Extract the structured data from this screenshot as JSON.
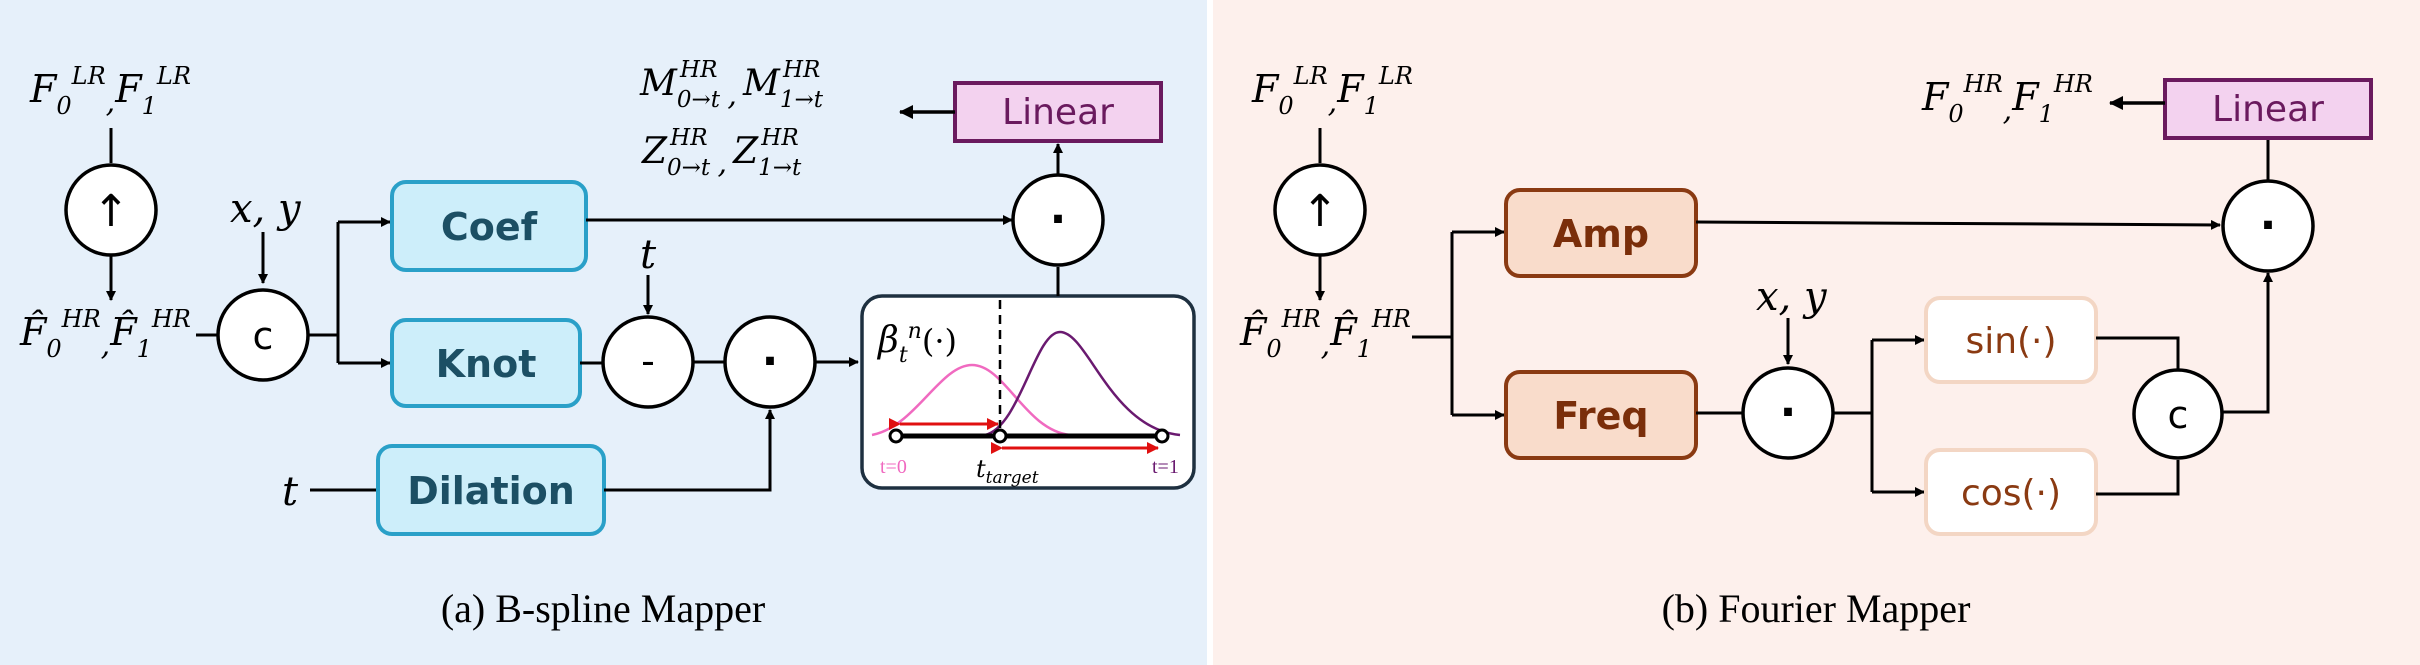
{
  "colors": {
    "panel_a_bg": "#e6f0fa",
    "panel_b_bg": "#fdf0ec",
    "blue_box_fill": "#cdeefa",
    "blue_box_stroke": "#2aa0c8",
    "blue_box_text": "#1c4f64",
    "orange_box_fill": "#f9dccb",
    "orange_box_stroke": "#8a3a12",
    "orange_box_text": "#7a2e0a",
    "light_box_fill": "#ffffff",
    "light_box_stroke": "#f3d6c4",
    "light_box_text": "#8a3a12",
    "linear_fill": "#f3d2ef",
    "linear_stroke": "#6a1a5e",
    "linear_text": "#6a1a5e",
    "curve_pink": "#f06ac0",
    "curve_purple": "#6a1a70",
    "arrow_red": "#e01010"
  },
  "panel_a": {
    "caption": "(a) B-spline Mapper",
    "input_lr": [
      "F",
      "0",
      "LR",
      ",",
      "F",
      "1",
      "LR"
    ],
    "upsample_symbol": "↑",
    "input_hr": [
      "F̂",
      "0",
      "HR",
      ",",
      "F̂",
      "1",
      "HR"
    ],
    "concat_symbol": "c",
    "xy_label": "x, y",
    "t_label": "t",
    "coef_label": "Coef",
    "knot_label": "Knot",
    "dilation_label": "Dilation",
    "minus_symbol": "-",
    "dot_symbol": "·",
    "linear_label": "Linear",
    "output_m": [
      "M",
      "0→t",
      "HR",
      ",",
      "M",
      "1→t",
      "HR"
    ],
    "output_z": [
      "Z",
      "0→t",
      "HR",
      ",",
      "Z",
      "1→t",
      "HR"
    ],
    "inset": {
      "beta_symbol": "β",
      "beta_sub": "t",
      "beta_sup": "n",
      "beta_arg": "(·)",
      "t0_label": "t=0",
      "t1_label": "t=1",
      "t_target_label": "t",
      "t_target_sub": "target"
    }
  },
  "panel_b": {
    "caption": "(b) Fourier Mapper",
    "input_lr": [
      "F",
      "0",
      "LR",
      ",",
      "F",
      "1",
      "LR"
    ],
    "upsample_symbol": "↑",
    "input_hr": [
      "F̂",
      "0",
      "HR",
      ",",
      "F̂",
      "1",
      "HR"
    ],
    "xy_label": "x, y",
    "amp_label": "Amp",
    "freq_label": "Freq",
    "dot_symbol": "·",
    "sin_label": "sin(·)",
    "cos_label": "cos(·)",
    "concat_symbol": "c",
    "linear_label": "Linear",
    "output": [
      "F",
      "0",
      "HR",
      ",",
      "F",
      "1",
      "HR"
    ]
  }
}
